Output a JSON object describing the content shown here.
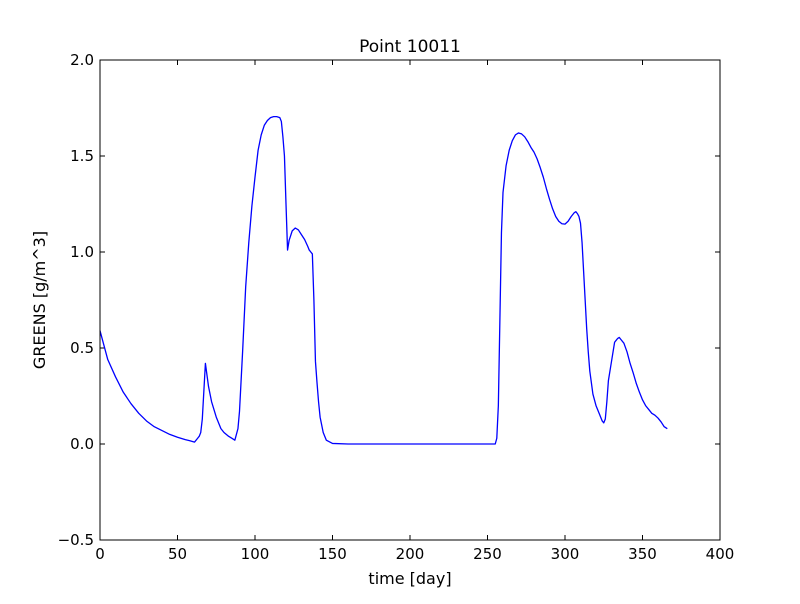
{
  "chart_data": {
    "type": "line",
    "title": "Point 10011",
    "xlabel": "time [day]",
    "ylabel": "GREENS [g/m^3]",
    "xlim": [
      0,
      400
    ],
    "ylim": [
      -0.5,
      2.0
    ],
    "xticks": [
      0,
      50,
      100,
      150,
      200,
      250,
      300,
      350,
      400
    ],
    "xtick_labels": [
      "0",
      "50",
      "100",
      "150",
      "200",
      "250",
      "300",
      "350",
      "400"
    ],
    "yticks": [
      -0.5,
      0.0,
      0.5,
      1.0,
      1.5,
      2.0
    ],
    "ytick_labels": [
      "−0.5",
      "0.0",
      "0.5",
      "1.0",
      "1.5",
      "2.0"
    ],
    "grid": false,
    "colors": {
      "line": "#0000ff",
      "axes": "#000000",
      "background": "#ffffff"
    },
    "series": [
      {
        "x": [
          0,
          5,
          10,
          15,
          20,
          25,
          30,
          35,
          40,
          45,
          50,
          55,
          58,
          61,
          63,
          64,
          65,
          66,
          68,
          70,
          72,
          75,
          78,
          80,
          83,
          85,
          86,
          87,
          88,
          89,
          90,
          92,
          94,
          96,
          98,
          100,
          102,
          104,
          106,
          108,
          110,
          112,
          114,
          116,
          117,
          118,
          119,
          120,
          121,
          122,
          124,
          126,
          128,
          130,
          132,
          134,
          135,
          136,
          137,
          138,
          139,
          140,
          141,
          142,
          144,
          146,
          150,
          160,
          255,
          256,
          257,
          258,
          259,
          260,
          262,
          264,
          266,
          268,
          270,
          272,
          274,
          276,
          278,
          280,
          282,
          284,
          286,
          288,
          290,
          292,
          294,
          296,
          298,
          300,
          302,
          304,
          306,
          307,
          308,
          309,
          310,
          311,
          312,
          313,
          314,
          315,
          316,
          318,
          320,
          322,
          324,
          325,
          326,
          327,
          328,
          330,
          332,
          333,
          334,
          335,
          336,
          338,
          340,
          342,
          344,
          346,
          348,
          350,
          352,
          354,
          356,
          358,
          360,
          362,
          364,
          366
        ],
        "y": [
          0.59,
          0.44,
          0.35,
          0.27,
          0.21,
          0.16,
          0.12,
          0.09,
          0.07,
          0.05,
          0.035,
          0.023,
          0.017,
          0.01,
          0.03,
          0.04,
          0.06,
          0.13,
          0.42,
          0.3,
          0.22,
          0.14,
          0.08,
          0.06,
          0.04,
          0.03,
          0.025,
          0.02,
          0.05,
          0.08,
          0.17,
          0.48,
          0.82,
          1.05,
          1.24,
          1.39,
          1.53,
          1.61,
          1.66,
          1.685,
          1.7,
          1.705,
          1.705,
          1.7,
          1.68,
          1.6,
          1.5,
          1.25,
          1.01,
          1.06,
          1.11,
          1.125,
          1.115,
          1.09,
          1.065,
          1.03,
          1.01,
          1.0,
          0.99,
          0.75,
          0.43,
          0.32,
          0.22,
          0.14,
          0.06,
          0.02,
          0.003,
          0.0,
          0.0,
          0.03,
          0.2,
          0.65,
          1.1,
          1.31,
          1.45,
          1.53,
          1.58,
          1.61,
          1.62,
          1.615,
          1.6,
          1.575,
          1.545,
          1.52,
          1.485,
          1.44,
          1.39,
          1.33,
          1.275,
          1.225,
          1.185,
          1.16,
          1.147,
          1.145,
          1.16,
          1.185,
          1.205,
          1.21,
          1.2,
          1.185,
          1.15,
          1.05,
          0.9,
          0.75,
          0.6,
          0.48,
          0.38,
          0.26,
          0.2,
          0.16,
          0.12,
          0.11,
          0.13,
          0.22,
          0.33,
          0.43,
          0.53,
          0.54,
          0.55,
          0.555,
          0.545,
          0.525,
          0.48,
          0.42,
          0.37,
          0.315,
          0.27,
          0.23,
          0.2,
          0.18,
          0.16,
          0.15,
          0.135,
          0.115,
          0.09,
          0.08
        ]
      }
    ]
  }
}
